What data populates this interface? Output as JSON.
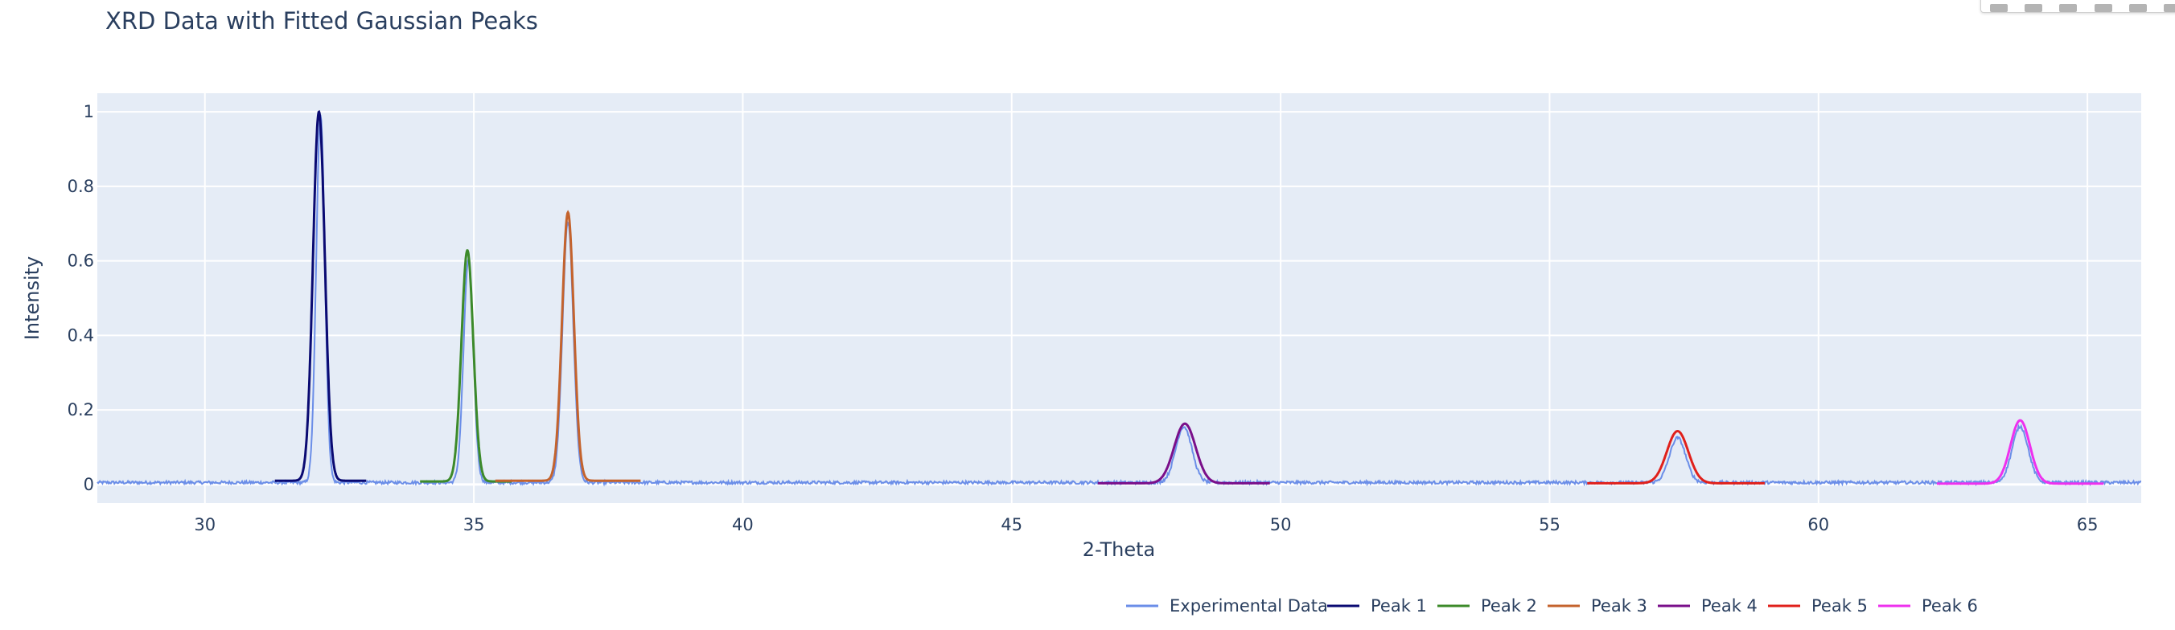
{
  "chart_data": {
    "type": "line",
    "title": "XRD Data with Fitted Gaussian Peaks",
    "xlabel": "2-Theta",
    "ylabel": "Intensity",
    "xlim": [
      28,
      66
    ],
    "ylim": [
      -0.05,
      1.05
    ],
    "xticks": [
      30,
      35,
      40,
      45,
      50,
      55,
      60,
      65
    ],
    "yticks": [
      0,
      0.2,
      0.4,
      0.6,
      0.8,
      1
    ],
    "ytick_labels": [
      "0",
      "0.2",
      "0.4",
      "0.6",
      "0.8",
      "1"
    ],
    "grid": true,
    "legend_position": "bottom-right",
    "experimental": {
      "name": "Experimental Data",
      "color": "#6b8ee8",
      "x_range": [
        28,
        66
      ],
      "baseline": 0.005,
      "noise": 0.004,
      "peaks": [
        {
          "center": 32.15,
          "height": 0.99,
          "sigma": 0.08
        },
        {
          "center": 34.9,
          "height": 0.6,
          "sigma": 0.09
        },
        {
          "center": 36.75,
          "height": 0.7,
          "sigma": 0.1
        },
        {
          "center": 48.2,
          "height": 0.15,
          "sigma": 0.15
        },
        {
          "center": 57.38,
          "height": 0.12,
          "sigma": 0.15
        },
        {
          "center": 63.75,
          "height": 0.15,
          "sigma": 0.15
        }
      ]
    },
    "series": [
      {
        "name": "Peak 1",
        "color": "#0a0a72",
        "center": 32.12,
        "amplitude": 0.99,
        "sigma": 0.11,
        "offset": 0.01,
        "x_range": [
          31.3,
          33.0
        ]
      },
      {
        "name": "Peak 2",
        "color": "#3c8a2a",
        "center": 34.88,
        "amplitude": 0.62,
        "sigma": 0.11,
        "offset": 0.008,
        "x_range": [
          34.0,
          35.7
        ]
      },
      {
        "name": "Peak 3",
        "color": "#c4632d",
        "center": 36.75,
        "amplitude": 0.72,
        "sigma": 0.11,
        "offset": 0.01,
        "x_range": [
          35.4,
          38.1
        ]
      },
      {
        "name": "Peak 4",
        "color": "#7a0f8a",
        "center": 48.22,
        "amplitude": 0.16,
        "sigma": 0.2,
        "offset": 0.003,
        "x_range": [
          46.6,
          49.8
        ]
      },
      {
        "name": "Peak 5",
        "color": "#e0201b",
        "center": 57.38,
        "amplitude": 0.14,
        "sigma": 0.2,
        "offset": 0.003,
        "x_range": [
          55.7,
          59.0
        ]
      },
      {
        "name": "Peak 6",
        "color": "#ee30ee",
        "center": 63.75,
        "amplitude": 0.17,
        "sigma": 0.18,
        "offset": 0.002,
        "x_range": [
          62.2,
          65.3
        ]
      }
    ]
  }
}
